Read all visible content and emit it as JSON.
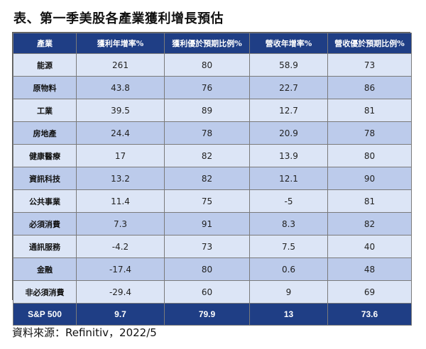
{
  "title": "表、第一季美股各產業獲利增長預估",
  "headers": [
    "產業",
    "獲利年增率%",
    "獲利優於預期比例%",
    "營收年增率%",
    "營收優於預期比例%"
  ],
  "rows": [
    [
      "能源",
      "261",
      "80",
      "58.9",
      "73"
    ],
    [
      "原物料",
      "43.8",
      "76",
      "22.7",
      "86"
    ],
    [
      "工業",
      "39.5",
      "89",
      "12.7",
      "81"
    ],
    [
      "房地產",
      "24.4",
      "78",
      "20.9",
      "78"
    ],
    [
      "健康醫療",
      "17",
      "82",
      "13.9",
      "80"
    ],
    [
      "資訊科技",
      "13.2",
      "82",
      "12.1",
      "90"
    ],
    [
      "公共事業",
      "11.4",
      "75",
      "-5",
      "81"
    ],
    [
      "必須消費",
      "7.3",
      "91",
      "8.3",
      "82"
    ],
    [
      "通訊服務",
      "-4.2",
      "73",
      "7.5",
      "40"
    ],
    [
      "金融",
      "-17.4",
      "80",
      "0.6",
      "48"
    ],
    [
      "非必須消費",
      "-29.4",
      "60",
      "9",
      "69"
    ]
  ],
  "total": [
    "S&P 500",
    "9.7",
    "79.9",
    "13",
    "73.6"
  ],
  "source": "資料來源：Refinitiv，2022/5"
}
